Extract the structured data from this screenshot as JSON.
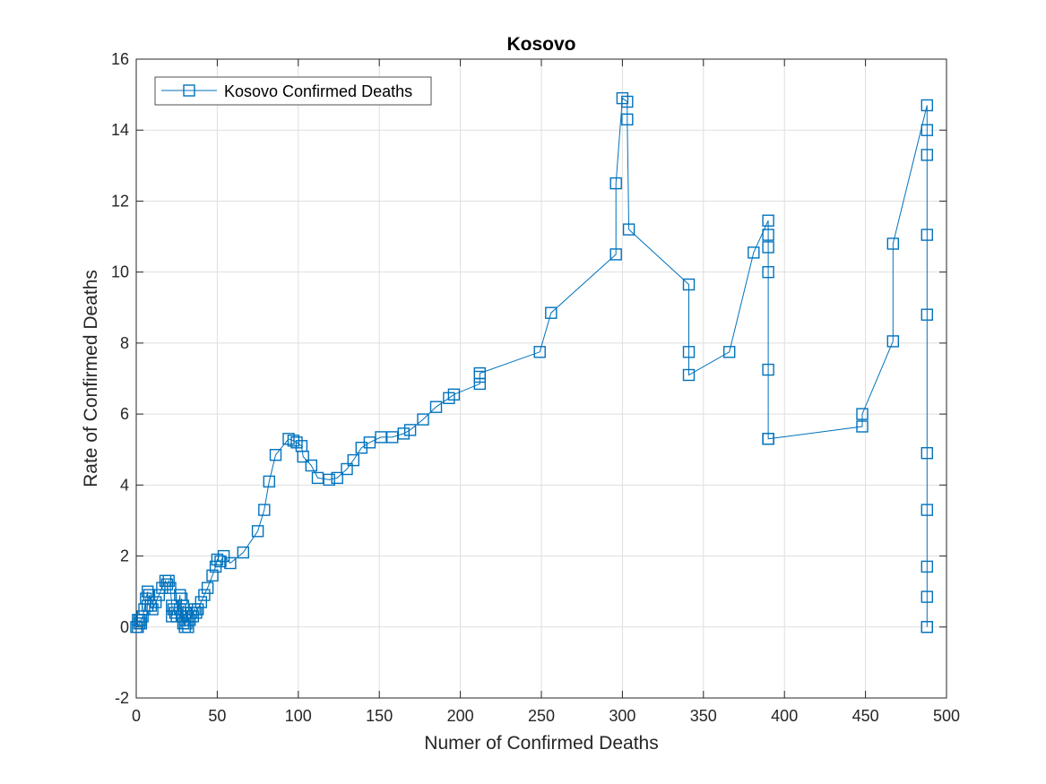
{
  "chart_data": {
    "type": "line",
    "title": "Kosovo",
    "xlabel": "Numer of Confirmed Deaths",
    "ylabel": "Rate of Confirmed Deaths",
    "xlim": [
      0,
      500
    ],
    "ylim": [
      -2,
      16
    ],
    "xticks": [
      0,
      50,
      100,
      150,
      200,
      250,
      300,
      350,
      400,
      450,
      500
    ],
    "yticks": [
      -2,
      0,
      2,
      4,
      6,
      8,
      10,
      12,
      14,
      16
    ],
    "grid": true,
    "legend_position": "top-left",
    "marker": "square",
    "line_color": "#0072bd",
    "series": [
      {
        "name": "Kosovo Confirmed Deaths",
        "x": [
          0,
          1,
          1,
          2,
          2,
          3,
          3,
          4,
          5,
          6,
          7,
          7,
          8,
          9,
          10,
          12,
          14,
          16,
          18,
          19,
          20,
          21,
          22,
          22,
          23,
          24,
          25,
          27,
          27,
          28,
          28,
          29,
          29,
          30,
          30,
          31,
          31,
          32,
          32,
          33,
          34,
          35,
          36,
          37,
          38,
          40,
          42,
          44,
          47,
          49,
          50,
          52,
          54,
          58,
          66,
          75,
          79,
          82,
          86,
          94,
          97,
          99,
          102,
          103,
          108,
          112,
          119,
          124,
          130,
          134,
          139,
          144,
          151,
          158,
          165,
          169,
          177,
          185,
          193,
          196,
          212,
          212,
          212,
          249,
          256,
          296,
          296,
          300,
          303,
          303,
          304,
          341,
          341,
          341,
          366,
          381,
          390,
          390,
          390,
          390,
          390,
          390,
          390,
          448,
          448,
          467,
          467,
          488,
          488,
          488,
          488,
          488,
          488,
          488,
          488,
          488,
          488,
          488
        ],
        "y": [
          0,
          0.2,
          0,
          0.1,
          0.2,
          0.1,
          0.2,
          0.3,
          0.5,
          0.8,
          1.0,
          0.6,
          0.9,
          0.6,
          0.5,
          0.7,
          0.9,
          1.1,
          1.3,
          1.2,
          1.3,
          1.1,
          0.6,
          0.3,
          0.5,
          0.4,
          0.3,
          0.9,
          0.5,
          0.8,
          0.3,
          0.6,
          0.1,
          0.2,
          0,
          0.4,
          0.1,
          0.3,
          0,
          0.2,
          0.4,
          0.3,
          0.5,
          0.4,
          0.5,
          0.7,
          0.9,
          1.1,
          1.45,
          1.7,
          1.9,
          1.85,
          2.0,
          1.8,
          2.1,
          2.7,
          3.3,
          4.1,
          4.85,
          5.3,
          5.25,
          5.2,
          5.1,
          4.8,
          4.55,
          4.2,
          4.15,
          4.2,
          4.45,
          4.7,
          5.05,
          5.2,
          5.35,
          5.35,
          5.45,
          5.55,
          5.85,
          6.2,
          6.45,
          6.55,
          6.85,
          7.05,
          7.15,
          7.75,
          8.85,
          10.5,
          12.5,
          14.9,
          14.8,
          14.3,
          11.2,
          9.65,
          7.75,
          7.1,
          7.75,
          10.55,
          11.45,
          11.05,
          10.7,
          10.0,
          7.25,
          5.3,
          5.3,
          5.65,
          6.0,
          8.05,
          10.8,
          14.7,
          14.0,
          13.3,
          11.05,
          8.8,
          4.9,
          3.3,
          1.7,
          0.85,
          0,
          0
        ]
      }
    ]
  }
}
